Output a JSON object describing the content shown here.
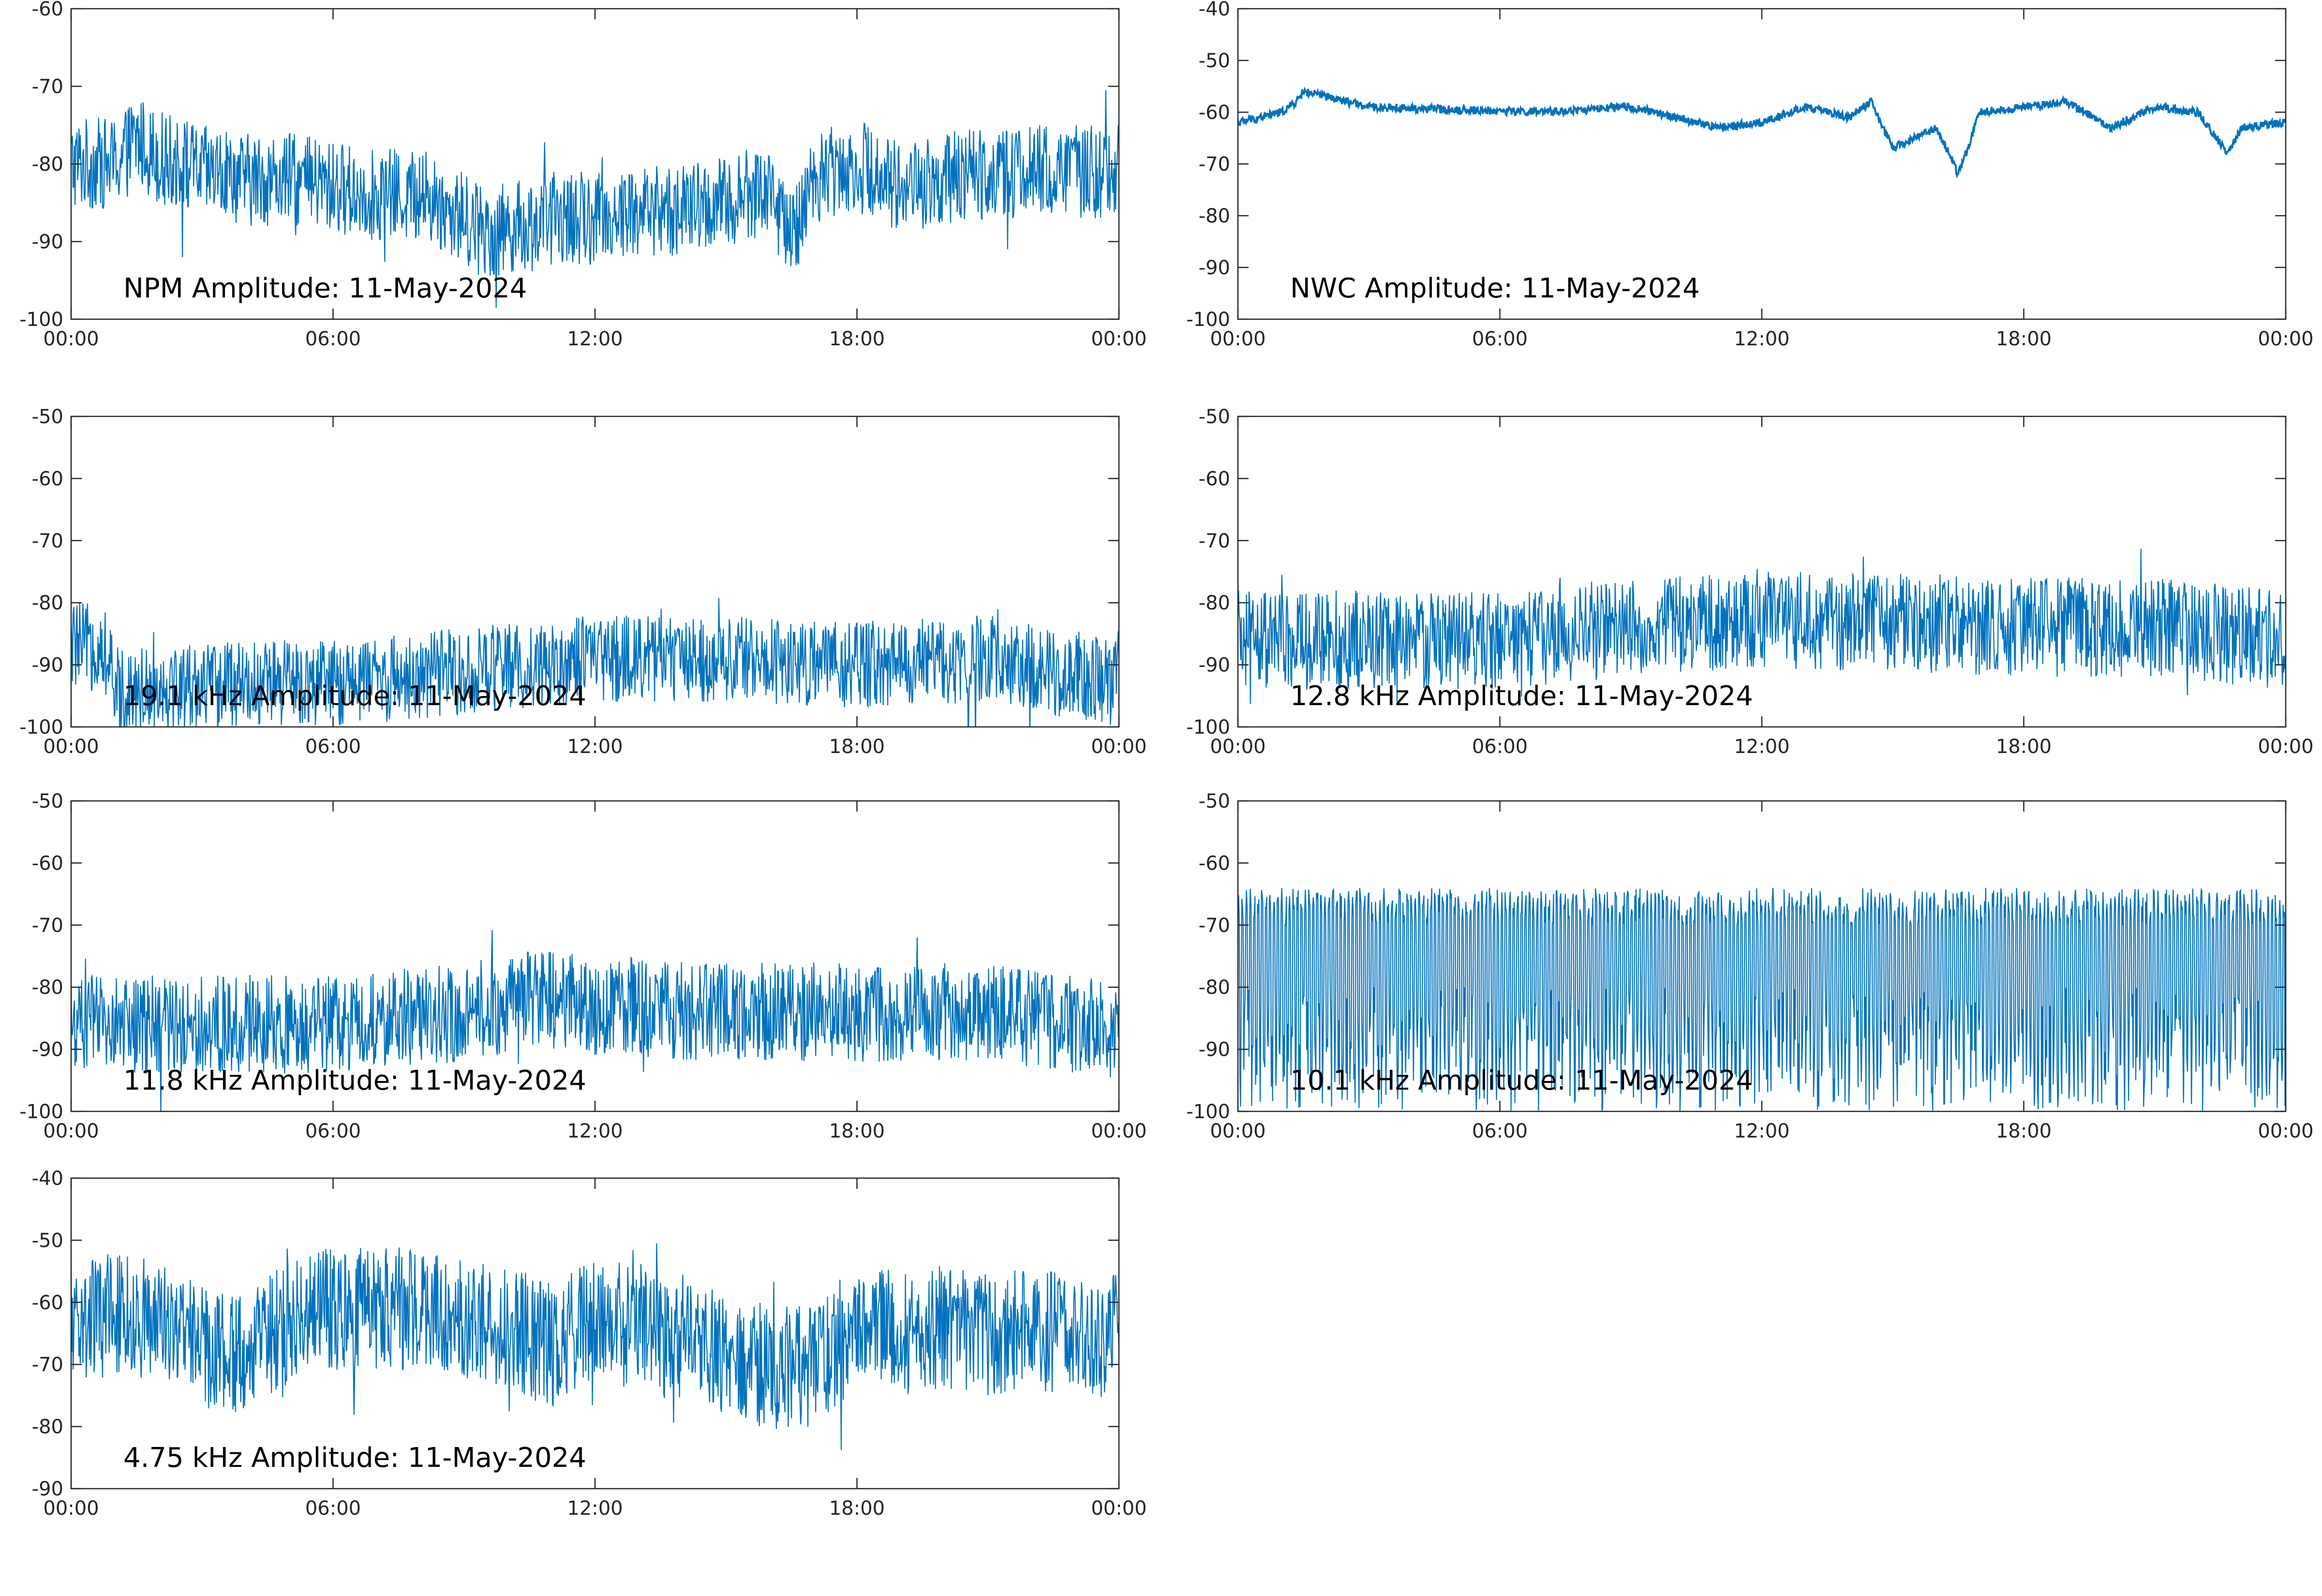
{
  "chart_data": [
    {
      "type": "line",
      "title": "NPM Amplitude: 11-May-2024",
      "x_ticks": [
        "00:00",
        "06:00",
        "12:00",
        "18:00",
        "00:00"
      ],
      "ylim": [
        -100,
        -60
      ],
      "y_ticks": [
        "-60",
        "-70",
        "-80",
        "-90",
        "-100"
      ],
      "line_color": "#0072BD",
      "series": [
        {
          "x": [
            "00:00",
            "01:00",
            "01:30",
            "02:00",
            "03:00",
            "04:00",
            "05:00",
            "06:00",
            "07:00",
            "08:00",
            "09:00",
            "09:45",
            "10:00",
            "10:30",
            "11:00",
            "12:00",
            "13:00",
            "14:00",
            "15:00",
            "16:00",
            "16:30",
            "17:00",
            "17:45",
            "18:30",
            "19:00",
            "20:00",
            "21:00",
            "22:00",
            "23:00",
            "24:00"
          ],
          "values": [
            -80,
            -80,
            -77,
            -79,
            -81,
            -82,
            -82,
            -83,
            -84,
            -84,
            -87,
            -89,
            -88,
            -88,
            -87,
            -87,
            -86,
            -86,
            -85,
            -83,
            -90,
            -82,
            -80,
            -81,
            -83,
            -82,
            -81,
            -81,
            -81,
            -81
          ]
        }
      ]
    },
    {
      "type": "line",
      "title": "NWC Amplitude: 11-May-2024",
      "x_ticks": [
        "00:00",
        "06:00",
        "12:00",
        "18:00",
        "00:00"
      ],
      "ylim": [
        -100,
        -40
      ],
      "y_ticks": [
        "-40",
        "-50",
        "-60",
        "-70",
        "-80",
        "-90",
        "-100"
      ],
      "line_color": "#0072BD",
      "series": [
        {
          "x": [
            "00:00",
            "01:00",
            "01:20",
            "01:30",
            "03:00",
            "05:00",
            "07:00",
            "09:00",
            "10:00",
            "11:00",
            "12:00",
            "13:00",
            "14:00",
            "14:30",
            "15:00",
            "16:00",
            "16:30",
            "17:00",
            "18:00",
            "19:00",
            "20:00",
            "21:00",
            "22:00",
            "22:40",
            "23:00",
            "24:00"
          ],
          "values": [
            -62,
            -60,
            -58,
            -56,
            -59,
            -59.5,
            -60,
            -59,
            -61,
            -63,
            -62,
            -59,
            -61,
            -58,
            -67,
            -63,
            -72,
            -60,
            -59,
            -58,
            -63,
            -59,
            -60,
            -68,
            -63,
            -62
          ]
        }
      ]
    },
    {
      "type": "line",
      "title": "19.1 kHz Amplitude: 11-May-2024",
      "x_ticks": [
        "00:00",
        "06:00",
        "12:00",
        "18:00",
        "00:00"
      ],
      "ylim": [
        -100,
        -50
      ],
      "y_ticks": [
        "-50",
        "-60",
        "-70",
        "-80",
        "-90",
        "-100"
      ],
      "line_color": "#0072BD",
      "series": [
        {
          "x": [
            "00:00",
            "00:45",
            "01:00",
            "03:00",
            "06:00",
            "09:00",
            "12:00",
            "15:00",
            "18:00",
            "21:00",
            "23:00",
            "24:00"
          ],
          "values": [
            -87,
            -87,
            -94,
            -93,
            -93,
            -91,
            -89,
            -89,
            -90,
            -89,
            -92,
            -93
          ]
        }
      ]
    },
    {
      "type": "line",
      "title": "12.8 kHz Amplitude: 11-May-2024",
      "x_ticks": [
        "00:00",
        "06:00",
        "12:00",
        "18:00",
        "00:00"
      ],
      "ylim": [
        -100,
        -50
      ],
      "y_ticks": [
        "-50",
        "-60",
        "-70",
        "-80",
        "-90",
        "-100"
      ],
      "line_color": "#0072BD",
      "series": [
        {
          "x": [
            "00:00",
            "03:00",
            "06:00",
            "09:00",
            "10:30",
            "12:00",
            "15:00",
            "18:00",
            "21:00",
            "24:00"
          ],
          "values": [
            -86,
            -86,
            -86,
            -84,
            -83,
            -83,
            -83,
            -84,
            -84,
            -86
          ]
        }
      ]
    },
    {
      "type": "line",
      "title": "11.8 kHz Amplitude: 11-May-2024",
      "x_ticks": [
        "00:00",
        "06:00",
        "12:00",
        "18:00",
        "00:00"
      ],
      "ylim": [
        -100,
        -50
      ],
      "y_ticks": [
        "-50",
        "-60",
        "-70",
        "-80",
        "-90",
        "-100"
      ],
      "line_color": "#0072BD",
      "series": [
        {
          "x": [
            "00:00",
            "03:00",
            "06:00",
            "09:00",
            "10:30",
            "12:00",
            "15:00",
            "18:00",
            "21:00",
            "24:00"
          ],
          "values": [
            -86,
            -86,
            -86,
            -84,
            -82,
            -83,
            -84,
            -84,
            -84,
            -87
          ]
        }
      ]
    },
    {
      "type": "line",
      "title": "10.1 kHz Amplitude: 11-May-2024",
      "x_ticks": [
        "00:00",
        "06:00",
        "12:00",
        "18:00",
        "00:00"
      ],
      "ylim": [
        -100,
        -50
      ],
      "y_ticks": [
        "-50",
        "-60",
        "-70",
        "-80",
        "-90",
        "-100"
      ],
      "line_color": "#0072BD",
      "series": [
        {
          "x": [
            "00:00",
            "06:00",
            "12:00",
            "18:00",
            "24:00"
          ],
          "values": [
            -75,
            -75,
            -75,
            -75,
            -75
          ]
        }
      ]
    },
    {
      "type": "line",
      "title": "4.75 kHz Amplitude: 11-May-2024",
      "x_ticks": [
        "00:00",
        "06:00",
        "12:00",
        "18:00",
        "00:00"
      ],
      "ylim": [
        -90,
        -40
      ],
      "y_ticks": [
        "-40",
        "-50",
        "-60",
        "-70",
        "-80",
        "-90"
      ],
      "line_color": "#0072BD",
      "series": [
        {
          "x": [
            "00:00",
            "01:00",
            "02:00",
            "03:00",
            "04:00",
            "05:00",
            "06:00",
            "07:00",
            "08:00",
            "09:00",
            "10:00",
            "11:00",
            "12:00",
            "13:00",
            "14:00",
            "15:00",
            "16:00",
            "17:00",
            "18:00",
            "19:00",
            "20:00",
            "21:00",
            "22:00",
            "23:00",
            "24:00"
          ],
          "values": [
            -63,
            -62,
            -63,
            -67,
            -69,
            -63,
            -61,
            -61,
            -61,
            -63,
            -64,
            -67,
            -63,
            -64,
            -67,
            -68,
            -71,
            -70,
            -64,
            -65,
            -64,
            -65,
            -64,
            -66,
            -65
          ]
        }
      ]
    }
  ]
}
